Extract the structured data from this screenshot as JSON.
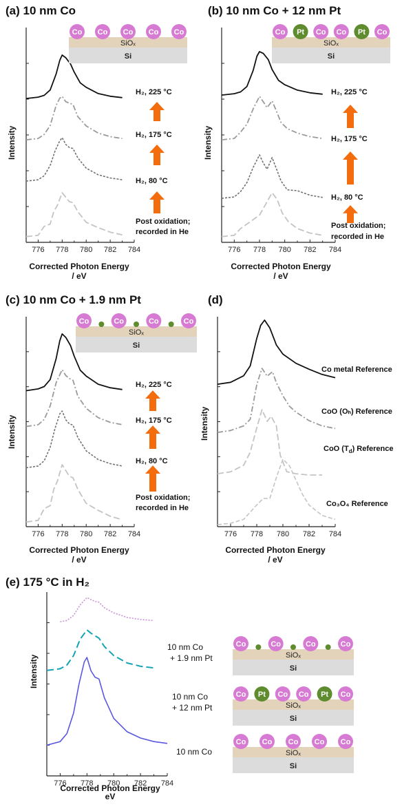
{
  "panels": {
    "a": {
      "title": "(a) 10 nm Co"
    },
    "b": {
      "title": "(b) 10 nm Co + 12 nm Pt"
    },
    "c": {
      "title": "(c) 10 nm Co + 1.9 nm Pt"
    },
    "d": {
      "title": "(d)"
    },
    "e": {
      "title": "(e) 175 °C in H₂"
    }
  },
  "axis": {
    "xlabel_line1": "Corrected Photon Energy",
    "xlabel_line2": "/ eV",
    "xlabel_e_line1": "Corrected Photon Energy /",
    "xlabel_e_line2": "eV",
    "ylabel": "Intensity"
  },
  "substrate": {
    "oxide": "SiOₓ",
    "base": "Si",
    "co": "Co",
    "pt": "Pt"
  },
  "colors": {
    "black": "#111111",
    "gray_dashdot": "#9a9a9a",
    "gray_dotted": "#707070",
    "lightgray_dashed": "#c4c4c4",
    "arrow": "#f36d0f",
    "co_particle": "#d77ad3",
    "pt_particle": "#5f8c2e",
    "sio2": "#e3d3bb",
    "si": "#dcdcdc",
    "e_violet": "#c990d6",
    "e_teal": "#12a3b5",
    "e_blue": "#5a57e0"
  },
  "chart_data": [
    {
      "panel": "a",
      "type": "line",
      "xlim": [
        775,
        784
      ],
      "xticks": [
        776,
        778,
        780,
        782,
        784
      ],
      "series": [
        {
          "name": "H₂, 225 °C",
          "x": [
            775,
            776,
            776.5,
            777,
            777.5,
            777.8,
            778,
            778.3,
            778.7,
            779,
            779.5,
            780,
            781,
            782,
            783
          ],
          "values": [
            0.03,
            0.06,
            0.1,
            0.22,
            0.58,
            0.88,
            1.0,
            0.94,
            0.8,
            0.62,
            0.38,
            0.28,
            0.14,
            0.08,
            0.05
          ],
          "style": "solid"
        },
        {
          "name": "H₂, 175 °C",
          "x": [
            775,
            776,
            776.5,
            777,
            777.5,
            777.8,
            778,
            778.3,
            778.6,
            778.9,
            779.3,
            780,
            781,
            782,
            783
          ],
          "values": [
            0.03,
            0.06,
            0.15,
            0.35,
            0.8,
            0.96,
            1.0,
            0.88,
            0.85,
            0.82,
            0.55,
            0.34,
            0.18,
            0.1,
            0.06
          ],
          "style": "dashdot"
        },
        {
          "name": "H₂, 80 °C",
          "x": [
            775,
            776,
            776.5,
            777,
            777.4,
            777.8,
            778,
            778.3,
            778.6,
            778.9,
            779.3,
            780,
            781,
            782,
            783
          ],
          "values": [
            0.03,
            0.06,
            0.15,
            0.38,
            0.7,
            0.93,
            1.0,
            0.85,
            0.78,
            0.76,
            0.55,
            0.32,
            0.17,
            0.1,
            0.06
          ],
          "style": "dotted"
        },
        {
          "name": "Post oxidation; recorded in He",
          "x": [
            775,
            776,
            776.5,
            777,
            777.3,
            777.6,
            778,
            778.3,
            778.6,
            778.9,
            779.3,
            780,
            781,
            782,
            783
          ],
          "values": [
            0.02,
            0.05,
            0.25,
            0.3,
            0.58,
            0.72,
            1.0,
            0.9,
            0.8,
            0.78,
            0.58,
            0.34,
            0.22,
            0.12,
            0.06
          ],
          "style": "dashed"
        }
      ]
    },
    {
      "panel": "b",
      "type": "line",
      "xlim": [
        775,
        784
      ],
      "xticks": [
        776,
        778,
        780,
        782,
        784
      ],
      "series": [
        {
          "name": "H₂, 225 °C",
          "x": [
            775,
            776,
            776.5,
            777,
            777.5,
            777.8,
            778,
            778.3,
            778.7,
            779,
            779.5,
            780,
            781,
            782,
            783
          ],
          "values": [
            0.03,
            0.06,
            0.1,
            0.22,
            0.58,
            0.9,
            1.0,
            0.96,
            0.82,
            0.6,
            0.36,
            0.26,
            0.14,
            0.08,
            0.05
          ],
          "style": "solid"
        },
        {
          "name": "H₂, 175 °C",
          "x": [
            775,
            776,
            776.5,
            777,
            777.5,
            778,
            778.3,
            778.6,
            779,
            779.3,
            779.7,
            780.2,
            781,
            782,
            783
          ],
          "values": [
            0.03,
            0.06,
            0.2,
            0.38,
            0.72,
            1.0,
            0.88,
            0.75,
            0.9,
            0.7,
            0.42,
            0.28,
            0.18,
            0.1,
            0.06
          ],
          "style": "dashdot"
        },
        {
          "name": "H₂, 80 °C",
          "x": [
            775,
            776,
            776.5,
            777,
            777.5,
            778,
            778.3,
            778.6,
            779,
            779.3,
            779.7,
            780.2,
            781,
            782,
            783
          ],
          "values": [
            0.03,
            0.06,
            0.18,
            0.38,
            0.72,
            1.0,
            0.82,
            0.68,
            0.94,
            0.72,
            0.42,
            0.22,
            0.2,
            0.1,
            0.05
          ],
          "style": "dotted"
        },
        {
          "name": "Post oxidation; recorded in He",
          "x": [
            775,
            776,
            776.5,
            777,
            777.5,
            778,
            778.5,
            779,
            779.4,
            779.8,
            780.3,
            781,
            782,
            783
          ],
          "values": [
            0.02,
            0.05,
            0.2,
            0.3,
            0.4,
            0.5,
            0.75,
            1.0,
            0.85,
            0.55,
            0.35,
            0.2,
            0.1,
            0.05
          ],
          "style": "dashed"
        }
      ]
    },
    {
      "panel": "c",
      "type": "line",
      "xlim": [
        775,
        784
      ],
      "xticks": [
        776,
        778,
        780,
        782,
        784
      ],
      "series": [
        {
          "name": "H₂, 225 °C",
          "x": [
            775,
            776,
            776.5,
            777,
            777.5,
            777.8,
            778,
            778.3,
            778.7,
            779,
            779.5,
            780,
            781,
            782,
            783
          ],
          "values": [
            0.03,
            0.06,
            0.1,
            0.22,
            0.58,
            0.88,
            1.0,
            0.94,
            0.8,
            0.62,
            0.38,
            0.28,
            0.14,
            0.08,
            0.05
          ],
          "style": "solid"
        },
        {
          "name": "H₂, 175 °C",
          "x": [
            775,
            776,
            776.5,
            777,
            777.5,
            778,
            778.3,
            778.6,
            778.9,
            779.3,
            780,
            781,
            782,
            783
          ],
          "values": [
            0.03,
            0.06,
            0.15,
            0.38,
            0.78,
            1.0,
            0.9,
            0.85,
            0.82,
            0.55,
            0.34,
            0.18,
            0.1,
            0.06
          ],
          "style": "dashdot"
        },
        {
          "name": "H₂, 80 °C",
          "x": [
            775,
            776,
            776.5,
            777,
            777.4,
            777.8,
            778,
            778.3,
            778.6,
            778.9,
            779.3,
            780,
            781,
            782,
            783
          ],
          "values": [
            0.03,
            0.06,
            0.15,
            0.38,
            0.7,
            0.95,
            1.0,
            0.85,
            0.78,
            0.76,
            0.55,
            0.32,
            0.17,
            0.1,
            0.06
          ],
          "style": "dotted"
        },
        {
          "name": "Post oxidation; recorded in He",
          "x": [
            775,
            776,
            776.5,
            777,
            777.3,
            777.6,
            778,
            778.3,
            778.6,
            778.9,
            779.3,
            780,
            781,
            782,
            783
          ],
          "values": [
            0.02,
            0.05,
            0.25,
            0.3,
            0.58,
            0.72,
            1.0,
            0.9,
            0.8,
            0.78,
            0.58,
            0.34,
            0.22,
            0.12,
            0.06
          ],
          "style": "dashed"
        }
      ]
    },
    {
      "panel": "d",
      "type": "line",
      "xlim": [
        775,
        784
      ],
      "xticks": [
        776,
        778,
        780,
        782,
        784
      ],
      "series": [
        {
          "name": "Co metal Reference",
          "x": [
            775,
            776,
            777,
            777.5,
            778,
            778.3,
            778.6,
            779,
            779.5,
            780,
            781,
            782,
            783,
            784
          ],
          "values": [
            0.02,
            0.05,
            0.15,
            0.3,
            0.72,
            0.92,
            1.0,
            0.88,
            0.62,
            0.48,
            0.34,
            0.25,
            0.17,
            0.12
          ],
          "style": "solid"
        },
        {
          "name": "CoO (Oₕ) Reference",
          "x": [
            775,
            776,
            777,
            777.5,
            778,
            778.4,
            778.8,
            779.2,
            779.5,
            780,
            780.5,
            781,
            782,
            783,
            784
          ],
          "values": [
            0.02,
            0.05,
            0.12,
            0.22,
            0.75,
            1.0,
            0.88,
            0.95,
            0.78,
            0.58,
            0.42,
            0.33,
            0.2,
            0.12,
            0.08
          ],
          "style": "dashdot"
        },
        {
          "name": "CoO (T_d) Reference",
          "x": [
            775,
            776,
            777,
            777.5,
            778,
            778.4,
            778.8,
            779.1,
            779.5,
            779.8,
            780.3,
            781,
            782,
            783
          ],
          "values": [
            0.02,
            0.05,
            0.15,
            0.35,
            0.72,
            1.0,
            0.82,
            0.9,
            0.75,
            0.3,
            0.05,
            0.02,
            0.0,
            0.0
          ],
          "style": "dashed"
        },
        {
          "name": "Co₃O₄ Reference",
          "x": [
            775,
            776,
            777,
            778,
            778.5,
            779,
            779.5,
            780,
            780.5,
            781,
            781.5,
            782,
            783,
            784
          ],
          "values": [
            0.0,
            0.02,
            0.08,
            0.3,
            0.4,
            0.4,
            0.72,
            1.0,
            0.9,
            0.68,
            0.46,
            0.3,
            0.14,
            0.08
          ],
          "style": "dashed_light"
        }
      ]
    },
    {
      "panel": "e",
      "type": "line",
      "xlim": [
        775,
        784
      ],
      "xticks": [
        776,
        778,
        780,
        782,
        784
      ],
      "series": [
        {
          "name": "10 nm Co + 1.9 nm Pt",
          "x": [
            776,
            776.5,
            777,
            777.5,
            778,
            778.3,
            778.6,
            778.9,
            779.3,
            780,
            781,
            782,
            783
          ],
          "values": [
            0.05,
            0.1,
            0.3,
            0.72,
            1.0,
            0.92,
            0.85,
            0.82,
            0.6,
            0.4,
            0.22,
            0.14,
            0.1
          ],
          "style": "dotted_violet"
        },
        {
          "name": "10 nm Co + 12 nm Pt",
          "x": [
            775,
            776,
            776.5,
            777,
            777.5,
            778,
            778.3,
            778.6,
            778.9,
            779.3,
            780,
            781,
            782,
            783
          ],
          "values": [
            0.02,
            0.06,
            0.15,
            0.38,
            0.78,
            1.0,
            0.92,
            0.86,
            0.8,
            0.6,
            0.38,
            0.2,
            0.12,
            0.08
          ],
          "style": "dashed_teal"
        },
        {
          "name": "10 nm Co",
          "x": [
            775,
            776,
            776.5,
            777,
            777.4,
            777.8,
            778,
            778.3,
            778.6,
            778.9,
            779.3,
            780,
            781,
            782,
            783,
            784
          ],
          "values": [
            0.02,
            0.06,
            0.15,
            0.38,
            0.7,
            0.95,
            1.0,
            0.85,
            0.78,
            0.76,
            0.55,
            0.32,
            0.17,
            0.1,
            0.06,
            0.04
          ],
          "style": "solid_blue"
        }
      ]
    }
  ],
  "labels": {
    "a": [
      "H₂, 225 °C",
      "H₂, 175 °C",
      "H₂, 80 °C",
      "Post oxidation;",
      "recorded in He"
    ],
    "b": [
      "H₂, 225 °C",
      "H₂, 175 °C",
      "H₂, 80 °C",
      "Post oxidation;",
      "recorded in He"
    ],
    "c": [
      "H₂, 225 °C",
      "H₂, 175 °C",
      "H₂, 80 °C",
      "Post oxidation;",
      "recorded in He"
    ],
    "d": [
      "Co metal Reference",
      "CoO (Oₕ) Reference",
      "CoO (T",
      "d",
      ") Reference",
      "Co₃O₄ Reference"
    ],
    "e": [
      "10 nm Co",
      "+ 1.9 nm Pt",
      "10 nm Co",
      "+ 12 nm Pt",
      "10 nm Co"
    ]
  }
}
